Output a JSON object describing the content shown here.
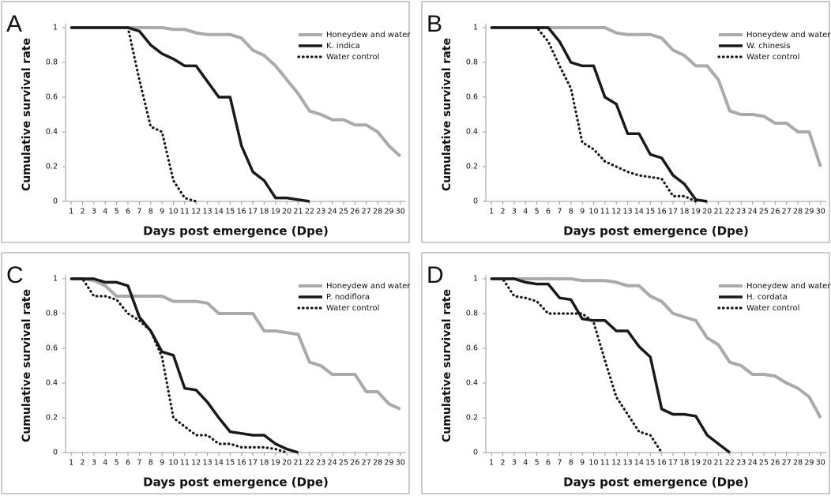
{
  "chart_data": [
    {
      "type": "line",
      "panel_label": "A",
      "x_label": "Days post emergence (Dpe)",
      "y_label": "Cumulative survival rate",
      "legend": "upper right",
      "x": [
        1,
        2,
        3,
        4,
        5,
        6,
        7,
        8,
        9,
        10,
        11,
        12,
        13,
        14,
        15,
        16,
        17,
        18,
        19,
        20,
        21,
        22,
        23,
        24,
        25,
        26,
        27,
        28,
        29,
        30
      ],
      "xlim": [
        0.5,
        30.5
      ],
      "xticks": [
        1,
        2,
        3,
        4,
        5,
        6,
        7,
        8,
        9,
        10,
        11,
        12,
        13,
        14,
        15,
        16,
        17,
        18,
        19,
        20,
        21,
        22,
        23,
        24,
        25,
        26,
        27,
        28,
        29,
        30
      ],
      "ylim": [
        0,
        1
      ],
      "yticks": [
        0,
        0.2,
        0.4,
        0.6,
        0.8,
        1
      ],
      "series": [
        {
          "name": "Honeydew and water",
          "color": "#aaaaaa",
          "style": "solid",
          "values": [
            1,
            1,
            1,
            1,
            1,
            1,
            1,
            1,
            1,
            0.99,
            0.99,
            0.97,
            0.96,
            0.96,
            0.96,
            0.94,
            0.87,
            0.84,
            0.78,
            0.7,
            0.62,
            0.52,
            0.5,
            0.47,
            0.47,
            0.44,
            0.44,
            0.4,
            0.32,
            0.26
          ]
        },
        {
          "name": "K. indica",
          "color": "#1a1a1a",
          "style": "solid",
          "values": [
            1,
            1,
            1,
            1,
            1,
            1,
            0.98,
            0.9,
            0.85,
            0.82,
            0.78,
            0.78,
            0.69,
            0.6,
            0.6,
            0.32,
            0.17,
            0.12,
            0.02,
            0.02,
            0.01,
            0,
            null,
            null,
            null,
            null,
            null,
            null,
            null,
            null
          ]
        },
        {
          "name": "Water control",
          "color": "#1a1a1a",
          "style": "dotted",
          "values": [
            1,
            1,
            1,
            1,
            1,
            1,
            0.7,
            0.43,
            0.4,
            0.12,
            0.02,
            0,
            null,
            null,
            null,
            null,
            null,
            null,
            null,
            null,
            null,
            null,
            null,
            null,
            null,
            null,
            null,
            null,
            null,
            null
          ]
        }
      ]
    },
    {
      "type": "line",
      "panel_label": "B",
      "x_label": "Days post emergence (Dpe)",
      "y_label": "Cumulative survival rate",
      "legend": "upper right",
      "x": [
        1,
        2,
        3,
        4,
        5,
        6,
        7,
        8,
        9,
        10,
        11,
        12,
        13,
        14,
        15,
        16,
        17,
        18,
        19,
        20,
        21,
        22,
        23,
        24,
        25,
        26,
        27,
        28,
        29,
        30
      ],
      "xlim": [
        0.5,
        30.5
      ],
      "xticks": [
        1,
        2,
        3,
        4,
        5,
        6,
        7,
        8,
        9,
        10,
        11,
        12,
        13,
        14,
        15,
        16,
        17,
        18,
        19,
        20,
        21,
        22,
        23,
        24,
        25,
        26,
        27,
        28,
        29,
        30
      ],
      "ylim": [
        0,
        1
      ],
      "yticks": [
        0,
        0.2,
        0.4,
        0.6,
        0.8,
        1
      ],
      "series": [
        {
          "name": "Honeydew and water",
          "color": "#aaaaaa",
          "style": "solid",
          "values": [
            1,
            1,
            1,
            1,
            1,
            1,
            1,
            1,
            1,
            1,
            1,
            0.97,
            0.96,
            0.96,
            0.96,
            0.94,
            0.87,
            0.84,
            0.78,
            0.78,
            0.7,
            0.52,
            0.5,
            0.5,
            0.49,
            0.45,
            0.45,
            0.4,
            0.4,
            0.2
          ]
        },
        {
          "name": "W. chinesis",
          "color": "#1a1a1a",
          "style": "solid",
          "values": [
            1,
            1,
            1,
            1,
            1,
            1,
            0.92,
            0.8,
            0.78,
            0.78,
            0.6,
            0.56,
            0.39,
            0.39,
            0.27,
            0.25,
            0.15,
            0.1,
            0.01,
            0,
            null,
            null,
            null,
            null,
            null,
            null,
            null,
            null,
            null,
            null
          ]
        },
        {
          "name": "Water control",
          "color": "#1a1a1a",
          "style": "dotted",
          "values": [
            1,
            1,
            1,
            1,
            1,
            0.92,
            0.78,
            0.65,
            0.34,
            0.3,
            0.23,
            0.2,
            0.17,
            0.15,
            0.14,
            0.13,
            0.03,
            0.03,
            0,
            null,
            null,
            null,
            null,
            null,
            null,
            null,
            null,
            null,
            null,
            null
          ]
        }
      ]
    },
    {
      "type": "line",
      "panel_label": "C",
      "x_label": "Days post emergence (Dpe)",
      "y_label": "Cumulative survival rate",
      "legend": "upper right",
      "x": [
        1,
        2,
        3,
        4,
        5,
        6,
        7,
        8,
        9,
        10,
        11,
        12,
        13,
        14,
        15,
        16,
        17,
        18,
        19,
        20,
        21,
        22,
        23,
        24,
        25,
        26,
        27,
        28,
        29,
        30
      ],
      "xlim": [
        0.5,
        30.5
      ],
      "xticks": [
        1,
        2,
        3,
        4,
        5,
        6,
        7,
        8,
        9,
        10,
        11,
        12,
        13,
        14,
        15,
        16,
        17,
        18,
        19,
        20,
        21,
        22,
        23,
        24,
        25,
        26,
        27,
        28,
        29,
        30
      ],
      "ylim": [
        0,
        1
      ],
      "yticks": [
        0,
        0.2,
        0.4,
        0.6,
        0.8,
        1
      ],
      "series": [
        {
          "name": "Honeydew and water",
          "color": "#aaaaaa",
          "style": "solid",
          "values": [
            1,
            1,
            0.99,
            0.96,
            0.9,
            0.9,
            0.9,
            0.9,
            0.9,
            0.87,
            0.87,
            0.87,
            0.86,
            0.8,
            0.8,
            0.8,
            0.8,
            0.7,
            0.7,
            0.69,
            0.68,
            0.52,
            0.5,
            0.45,
            0.45,
            0.45,
            0.35,
            0.35,
            0.28,
            0.25
          ]
        },
        {
          "name": "P. nodiflora",
          "color": "#1a1a1a",
          "style": "solid",
          "values": [
            1,
            1,
            1,
            0.98,
            0.98,
            0.96,
            0.78,
            0.7,
            0.58,
            0.56,
            0.37,
            0.36,
            0.29,
            0.2,
            0.12,
            0.11,
            0.1,
            0.1,
            0.05,
            0.02,
            0,
            null,
            null,
            null,
            null,
            null,
            null,
            null,
            null,
            null
          ]
        },
        {
          "name": "Water control",
          "color": "#1a1a1a",
          "style": "dotted",
          "values": [
            1,
            1,
            0.9,
            0.9,
            0.88,
            0.8,
            0.76,
            0.7,
            0.55,
            0.2,
            0.15,
            0.1,
            0.1,
            0.05,
            0.05,
            0.03,
            0.03,
            0.03,
            0.02,
            0,
            null,
            null,
            null,
            null,
            null,
            null,
            null,
            null,
            null,
            null
          ]
        }
      ]
    },
    {
      "type": "line",
      "panel_label": "D",
      "x_label": "Days post emergence (Dpe)",
      "y_label": "Cumulative survival rate",
      "legend": "upper right",
      "x": [
        1,
        2,
        3,
        4,
        5,
        6,
        7,
        8,
        9,
        10,
        11,
        12,
        13,
        14,
        15,
        16,
        17,
        18,
        19,
        20,
        21,
        22,
        23,
        24,
        25,
        26,
        27,
        28,
        29,
        30
      ],
      "xlim": [
        0.5,
        30.5
      ],
      "xticks": [
        1,
        2,
        3,
        4,
        5,
        6,
        7,
        8,
        9,
        10,
        11,
        12,
        13,
        14,
        15,
        16,
        17,
        18,
        19,
        20,
        21,
        22,
        23,
        24,
        25,
        26,
        27,
        28,
        29,
        30
      ],
      "ylim": [
        0,
        1
      ],
      "yticks": [
        0,
        0.2,
        0.4,
        0.6,
        0.8,
        1
      ],
      "series": [
        {
          "name": "Honeydew and water",
          "color": "#aaaaaa",
          "style": "solid",
          "values": [
            1,
            1,
            1,
            1,
            1,
            1,
            1,
            1,
            0.99,
            0.99,
            0.99,
            0.98,
            0.96,
            0.96,
            0.9,
            0.87,
            0.8,
            0.78,
            0.76,
            0.66,
            0.62,
            0.52,
            0.5,
            0.45,
            0.45,
            0.44,
            0.4,
            0.37,
            0.32,
            0.2
          ]
        },
        {
          "name": "H. cordata",
          "color": "#1a1a1a",
          "style": "solid",
          "values": [
            1,
            1,
            1,
            0.98,
            0.97,
            0.97,
            0.89,
            0.88,
            0.77,
            0.76,
            0.76,
            0.7,
            0.7,
            0.61,
            0.55,
            0.25,
            0.22,
            0.22,
            0.21,
            0.1,
            0.05,
            0,
            null,
            null,
            null,
            null,
            null,
            null,
            null,
            null
          ]
        },
        {
          "name": "Water control",
          "color": "#1a1a1a",
          "style": "dotted",
          "values": [
            1,
            1,
            0.9,
            0.89,
            0.87,
            0.8,
            0.8,
            0.8,
            0.8,
            0.75,
            0.53,
            0.32,
            0.22,
            0.12,
            0.1,
            0,
            null,
            null,
            null,
            null,
            null,
            null,
            null,
            null,
            null,
            null,
            null,
            null,
            null,
            null
          ]
        }
      ]
    }
  ]
}
